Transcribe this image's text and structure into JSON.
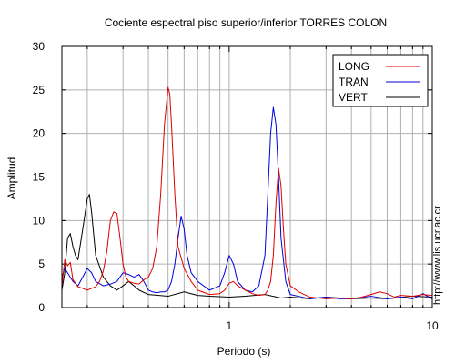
{
  "chart_data": {
    "type": "line",
    "title": "Cociente espectral piso superior/inferior  TORRES COLON",
    "xlabel": "Periodo (s)",
    "ylabel": "Amplitud",
    "x_scale": "log",
    "xlim": [
      0.15,
      10
    ],
    "ylim": [
      0,
      30
    ],
    "grid": true,
    "legend_position": "top-right",
    "x_tick_labels": [
      {
        "value": 1,
        "label": "1"
      },
      {
        "value": 10,
        "label": "10"
      }
    ],
    "y_tick_labels": [
      {
        "value": 0,
        "label": "0"
      },
      {
        "value": 5,
        "label": "5"
      },
      {
        "value": 10,
        "label": "10"
      },
      {
        "value": 15,
        "label": "15"
      },
      {
        "value": 20,
        "label": "20"
      },
      {
        "value": 25,
        "label": "25"
      },
      {
        "value": 30,
        "label": "30"
      }
    ],
    "series": [
      {
        "name": "LONG",
        "color": "#dd0000",
        "points": [
          [
            0.15,
            2.5
          ],
          [
            0.155,
            5.5
          ],
          [
            0.16,
            4.8
          ],
          [
            0.165,
            5.2
          ],
          [
            0.17,
            3.2
          ],
          [
            0.18,
            2.4
          ],
          [
            0.19,
            2.2
          ],
          [
            0.2,
            2.0
          ],
          [
            0.21,
            2.2
          ],
          [
            0.22,
            2.4
          ],
          [
            0.23,
            3.0
          ],
          [
            0.24,
            4.2
          ],
          [
            0.25,
            6.5
          ],
          [
            0.26,
            10.0
          ],
          [
            0.27,
            11.0
          ],
          [
            0.28,
            10.8
          ],
          [
            0.29,
            8.0
          ],
          [
            0.3,
            5.0
          ],
          [
            0.31,
            3.5
          ],
          [
            0.32,
            3.0
          ],
          [
            0.34,
            2.8
          ],
          [
            0.36,
            2.7
          ],
          [
            0.38,
            3.2
          ],
          [
            0.4,
            3.5
          ],
          [
            0.42,
            4.5
          ],
          [
            0.44,
            7.0
          ],
          [
            0.46,
            13.0
          ],
          [
            0.48,
            21.0
          ],
          [
            0.5,
            25.3
          ],
          [
            0.51,
            24.5
          ],
          [
            0.52,
            21.0
          ],
          [
            0.54,
            13.0
          ],
          [
            0.56,
            7.0
          ],
          [
            0.6,
            4.5
          ],
          [
            0.65,
            3.0
          ],
          [
            0.7,
            2.0
          ],
          [
            0.8,
            1.5
          ],
          [
            0.9,
            1.6
          ],
          [
            0.95,
            2.0
          ],
          [
            1.0,
            2.8
          ],
          [
            1.05,
            3.0
          ],
          [
            1.1,
            2.5
          ],
          [
            1.2,
            2.0
          ],
          [
            1.3,
            1.6
          ],
          [
            1.4,
            1.4
          ],
          [
            1.5,
            1.5
          ],
          [
            1.55,
            2.0
          ],
          [
            1.6,
            3.0
          ],
          [
            1.65,
            6.0
          ],
          [
            1.7,
            12.0
          ],
          [
            1.75,
            16.0
          ],
          [
            1.8,
            14.0
          ],
          [
            1.85,
            9.0
          ],
          [
            1.9,
            5.0
          ],
          [
            2.0,
            2.5
          ],
          [
            2.2,
            1.8
          ],
          [
            2.5,
            1.2
          ],
          [
            3.0,
            1.0
          ],
          [
            3.5,
            1.1
          ],
          [
            4.0,
            1.0
          ],
          [
            4.5,
            1.2
          ],
          [
            5.0,
            1.5
          ],
          [
            5.5,
            1.8
          ],
          [
            6.0,
            1.6
          ],
          [
            6.5,
            1.2
          ],
          [
            7.0,
            1.4
          ],
          [
            8.0,
            1.3
          ],
          [
            9.0,
            1.5
          ],
          [
            10.0,
            1.4
          ]
        ]
      },
      {
        "name": "TRAN",
        "color": "#0000dd",
        "points": [
          [
            0.15,
            3.5
          ],
          [
            0.155,
            4.5
          ],
          [
            0.16,
            4.0
          ],
          [
            0.17,
            3.0
          ],
          [
            0.18,
            2.5
          ],
          [
            0.19,
            3.5
          ],
          [
            0.2,
            4.5
          ],
          [
            0.21,
            4.0
          ],
          [
            0.22,
            3.0
          ],
          [
            0.24,
            2.5
          ],
          [
            0.26,
            2.7
          ],
          [
            0.28,
            3.0
          ],
          [
            0.3,
            4.0
          ],
          [
            0.32,
            3.8
          ],
          [
            0.34,
            3.5
          ],
          [
            0.36,
            3.8
          ],
          [
            0.38,
            3.0
          ],
          [
            0.4,
            2.0
          ],
          [
            0.42,
            1.8
          ],
          [
            0.44,
            1.7
          ],
          [
            0.46,
            1.8
          ],
          [
            0.48,
            1.8
          ],
          [
            0.5,
            2.0
          ],
          [
            0.52,
            3.0
          ],
          [
            0.54,
            5.0
          ],
          [
            0.56,
            8.0
          ],
          [
            0.58,
            10.5
          ],
          [
            0.6,
            9.0
          ],
          [
            0.62,
            6.0
          ],
          [
            0.65,
            4.0
          ],
          [
            0.7,
            3.0
          ],
          [
            0.8,
            2.0
          ],
          [
            0.9,
            2.5
          ],
          [
            0.95,
            4.0
          ],
          [
            1.0,
            6.0
          ],
          [
            1.05,
            5.0
          ],
          [
            1.1,
            3.0
          ],
          [
            1.2,
            2.0
          ],
          [
            1.3,
            1.8
          ],
          [
            1.4,
            2.5
          ],
          [
            1.5,
            6.0
          ],
          [
            1.55,
            13.0
          ],
          [
            1.6,
            20.0
          ],
          [
            1.65,
            23.0
          ],
          [
            1.7,
            21.0
          ],
          [
            1.75,
            15.0
          ],
          [
            1.8,
            8.0
          ],
          [
            1.9,
            3.0
          ],
          [
            2.0,
            1.5
          ],
          [
            2.5,
            1.0
          ],
          [
            3.0,
            1.2
          ],
          [
            3.5,
            1.0
          ],
          [
            4.0,
            1.0
          ],
          [
            5.0,
            1.3
          ],
          [
            6.0,
            1.0
          ],
          [
            7.0,
            1.2
          ],
          [
            8.0,
            1.0
          ],
          [
            9.0,
            1.6
          ],
          [
            10.0,
            1.0
          ]
        ]
      },
      {
        "name": "VERT",
        "color": "#000000",
        "points": [
          [
            0.15,
            2.0
          ],
          [
            0.155,
            4.0
          ],
          [
            0.16,
            8.0
          ],
          [
            0.165,
            8.5
          ],
          [
            0.17,
            7.0
          ],
          [
            0.175,
            6.0
          ],
          [
            0.18,
            5.5
          ],
          [
            0.19,
            9.0
          ],
          [
            0.2,
            12.5
          ],
          [
            0.205,
            13.0
          ],
          [
            0.21,
            11.0
          ],
          [
            0.22,
            6.0
          ],
          [
            0.24,
            3.5
          ],
          [
            0.26,
            2.5
          ],
          [
            0.28,
            2.0
          ],
          [
            0.3,
            2.5
          ],
          [
            0.32,
            3.0
          ],
          [
            0.34,
            2.5
          ],
          [
            0.36,
            2.0
          ],
          [
            0.4,
            1.5
          ],
          [
            0.5,
            1.3
          ],
          [
            0.6,
            1.8
          ],
          [
            0.7,
            1.4
          ],
          [
            0.8,
            1.3
          ],
          [
            1.0,
            1.2
          ],
          [
            1.2,
            1.3
          ],
          [
            1.5,
            1.5
          ],
          [
            1.8,
            1.1
          ],
          [
            2.0,
            1.2
          ],
          [
            2.5,
            1.0
          ],
          [
            3.0,
            1.2
          ],
          [
            4.0,
            1.0
          ],
          [
            5.0,
            1.1
          ],
          [
            6.0,
            1.0
          ],
          [
            8.0,
            1.3
          ],
          [
            10.0,
            1.2
          ]
        ]
      }
    ]
  },
  "side_label": "http://www.lis.ucr.ac.cr"
}
